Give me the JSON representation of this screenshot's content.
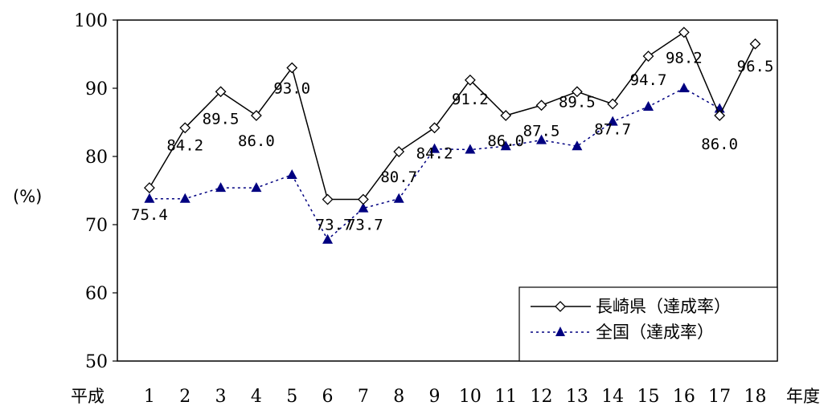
{
  "chart_data": {
    "type": "line",
    "x": [
      1,
      2,
      3,
      4,
      5,
      6,
      7,
      8,
      9,
      10,
      11,
      12,
      13,
      14,
      15,
      16,
      17,
      18
    ],
    "x_tick_labels": [
      "1",
      "2",
      "3",
      "4",
      "5",
      "6",
      "7",
      "8",
      "9",
      "10",
      "11",
      "12",
      "13",
      "14",
      "15",
      "16",
      "17",
      "18"
    ],
    "x_prefix": "平成",
    "xlabel": "年度",
    "ylabel": "(%)",
    "ylim": [
      50,
      100
    ],
    "y_ticks": [
      "50",
      "60",
      "70",
      "80",
      "90",
      "100"
    ],
    "grid": false,
    "legend_position": "bottom-right",
    "series": [
      {
        "name": "長崎県（達成率）",
        "marker": "diamond-open",
        "line": "solid",
        "color": "#000000",
        "values": [
          75.4,
          84.2,
          89.5,
          86.0,
          93.0,
          73.7,
          73.7,
          80.7,
          84.2,
          91.2,
          86.0,
          87.5,
          89.5,
          87.7,
          94.7,
          98.2,
          86.0,
          96.5
        ],
        "labels": [
          "75.4",
          "84.2",
          "89.5",
          "86.0",
          "93.0",
          "73.7",
          "73.7",
          "80.7",
          "84.2",
          "91.2",
          "86.0",
          "87.5",
          "89.5",
          "87.7",
          "94.7",
          "98.2",
          "86.0",
          "96.5"
        ]
      },
      {
        "name": "全国（達成率）",
        "marker": "triangle-filled",
        "line": "dotted",
        "color": "#000080",
        "values": [
          73.8,
          73.8,
          75.4,
          75.4,
          77.3,
          67.8,
          72.4,
          73.8,
          81.1,
          81.0,
          81.5,
          82.4,
          81.5,
          85.1,
          87.3,
          90.0,
          87.0,
          null
        ]
      }
    ]
  }
}
